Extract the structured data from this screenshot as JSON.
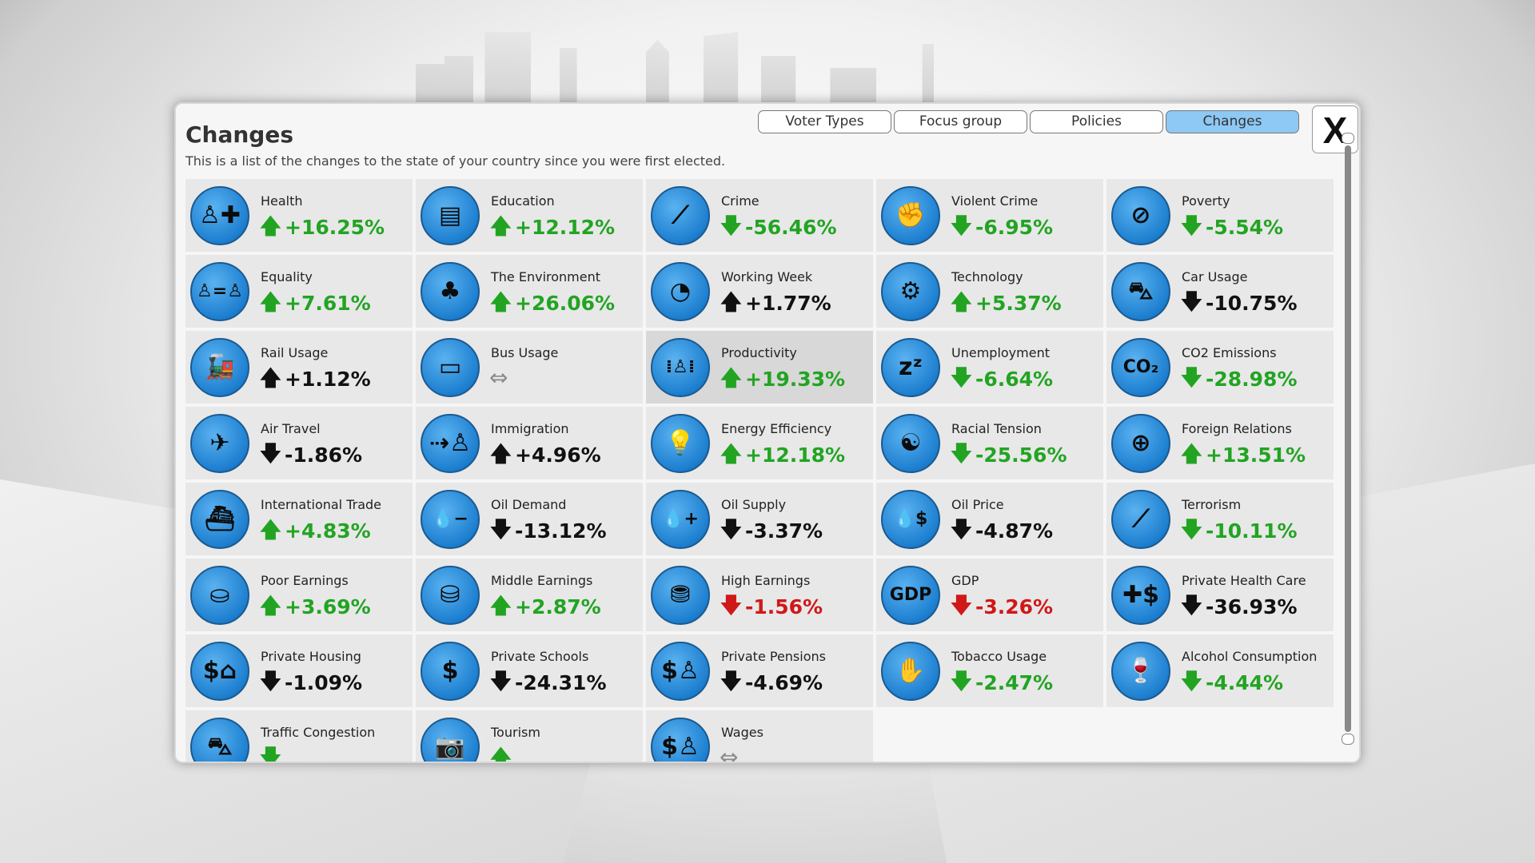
{
  "header": {
    "title": "Changes",
    "subtitle": "This is a list of the changes to the state of your country since you were first elected."
  },
  "tabs": [
    {
      "label": "Voter Types"
    },
    {
      "label": "Focus group"
    },
    {
      "label": "Policies"
    },
    {
      "label": "Changes",
      "active": true
    }
  ],
  "close_label": "X",
  "colors": {
    "green": "#22a422",
    "black": "#111111",
    "red": "#d01818",
    "neutral": "#8a8a8a",
    "icon_blue": "#2b8fe0",
    "active_tab": "#8ec8f4"
  },
  "items": [
    {
      "label": "Health",
      "value": "+16.25%",
      "arrow": "up",
      "color": "green",
      "icon": "person-plus",
      "glyph": "♙✚"
    },
    {
      "label": "Education",
      "value": "+12.12%",
      "arrow": "up",
      "color": "green",
      "icon": "report-card",
      "glyph": "▤"
    },
    {
      "label": "Crime",
      "value": "-56.46%",
      "arrow": "down",
      "color": "green",
      "icon": "crowbar-bag",
      "glyph": "⟋"
    },
    {
      "label": "Violent Crime",
      "value": "-6.95%",
      "arrow": "down",
      "color": "green",
      "icon": "fist",
      "glyph": "✊"
    },
    {
      "label": "Poverty",
      "value": "-5.54%",
      "arrow": "down",
      "color": "green",
      "icon": "no-dollar",
      "glyph": "⊘"
    },
    {
      "label": "Equality",
      "value": "+7.61%",
      "arrow": "up",
      "color": "green",
      "icon": "people-equal",
      "glyph": "♙=♙"
    },
    {
      "label": "The Environment",
      "value": "+26.06%",
      "arrow": "up",
      "color": "green",
      "icon": "trees",
      "glyph": "♣"
    },
    {
      "label": "Working Week",
      "value": "+1.77%",
      "arrow": "up",
      "color": "black",
      "icon": "clock-person",
      "glyph": "◔"
    },
    {
      "label": "Technology",
      "value": "+5.37%",
      "arrow": "up",
      "color": "green",
      "icon": "computer",
      "glyph": "⚙"
    },
    {
      "label": "Car Usage",
      "value": "-10.75%",
      "arrow": "down",
      "color": "black",
      "icon": "car",
      "glyph": "⛍"
    },
    {
      "label": "Rail Usage",
      "value": "+1.12%",
      "arrow": "up",
      "color": "black",
      "icon": "train",
      "glyph": "🚂"
    },
    {
      "label": "Bus Usage",
      "value": "",
      "arrow": "neutral",
      "color": "neutral",
      "icon": "bus",
      "glyph": "▭"
    },
    {
      "label": "Productivity",
      "value": "+19.33%",
      "arrow": "up",
      "color": "green",
      "icon": "productivity",
      "glyph": "⁞♙⁞",
      "highlight": true
    },
    {
      "label": "Unemployment",
      "value": "-6.64%",
      "arrow": "down",
      "color": "green",
      "icon": "sleeping-person",
      "glyph": "zᶻ"
    },
    {
      "label": "CO2 Emissions",
      "value": "-28.98%",
      "arrow": "down",
      "color": "green",
      "icon": "co2",
      "glyph": "CO₂"
    },
    {
      "label": "Air Travel",
      "value": "-1.86%",
      "arrow": "down",
      "color": "black",
      "icon": "airplane",
      "glyph": "✈"
    },
    {
      "label": "Immigration",
      "value": "+4.96%",
      "arrow": "up",
      "color": "black",
      "icon": "person-arrows",
      "glyph": "⇢♙"
    },
    {
      "label": "Energy Efficiency",
      "value": "+12.18%",
      "arrow": "up",
      "color": "green",
      "icon": "lightbulb",
      "glyph": "💡"
    },
    {
      "label": "Racial Tension",
      "value": "-25.56%",
      "arrow": "down",
      "color": "green",
      "icon": "yin-yang",
      "glyph": "☯"
    },
    {
      "label": "Foreign Relations",
      "value": "+13.51%",
      "arrow": "up",
      "color": "green",
      "icon": "globe",
      "glyph": "⊕"
    },
    {
      "label": "International Trade",
      "value": "+4.83%",
      "arrow": "up",
      "color": "green",
      "icon": "ship",
      "glyph": "⛴"
    },
    {
      "label": "Oil Demand",
      "value": "-13.12%",
      "arrow": "down",
      "color": "black",
      "icon": "drop-minus",
      "glyph": "💧−"
    },
    {
      "label": "Oil Supply",
      "value": "-3.37%",
      "arrow": "down",
      "color": "black",
      "icon": "drop-plus",
      "glyph": "💧+"
    },
    {
      "label": "Oil Price",
      "value": "-4.87%",
      "arrow": "down",
      "color": "black",
      "icon": "drop-dollar",
      "glyph": "💧$"
    },
    {
      "label": "Terrorism",
      "value": "-10.11%",
      "arrow": "down",
      "color": "green",
      "icon": "bomb",
      "glyph": "⟋"
    },
    {
      "label": "Poor Earnings",
      "value": "+3.69%",
      "arrow": "up",
      "color": "green",
      "icon": "coins-low",
      "glyph": "⛀"
    },
    {
      "label": "Middle Earnings",
      "value": "+2.87%",
      "arrow": "up",
      "color": "green",
      "icon": "coins-mid",
      "glyph": "⛁"
    },
    {
      "label": "High Earnings",
      "value": "-1.56%",
      "arrow": "down",
      "color": "red",
      "icon": "coins-high",
      "glyph": "⛃"
    },
    {
      "label": "GDP",
      "value": "-3.26%",
      "arrow": "down",
      "color": "red",
      "icon": "gdp",
      "glyph": "GDP"
    },
    {
      "label": "Private Health Care",
      "value": "-36.93%",
      "arrow": "down",
      "color": "black",
      "icon": "health-dollar",
      "glyph": "✚$"
    },
    {
      "label": "Private Housing",
      "value": "-1.09%",
      "arrow": "down",
      "color": "black",
      "icon": "house-dollar",
      "glyph": "$⌂"
    },
    {
      "label": "Private Schools",
      "value": "-24.31%",
      "arrow": "down",
      "color": "black",
      "icon": "school-dollar",
      "glyph": "$"
    },
    {
      "label": "Private Pensions",
      "value": "-4.69%",
      "arrow": "down",
      "color": "black",
      "icon": "pension-dollar",
      "glyph": "$♙"
    },
    {
      "label": "Tobacco Usage",
      "value": "-2.47%",
      "arrow": "down",
      "color": "green",
      "icon": "cigarette-hand",
      "glyph": "✋"
    },
    {
      "label": "Alcohol Consumption",
      "value": "-4.44%",
      "arrow": "down",
      "color": "green",
      "icon": "bottle-glass",
      "glyph": "🍷"
    },
    {
      "label": "Traffic Congestion",
      "value": "",
      "arrow": "down",
      "color": "green",
      "icon": "cars",
      "glyph": "⛍"
    },
    {
      "label": "Tourism",
      "value": "",
      "arrow": "up",
      "color": "green",
      "icon": "camera",
      "glyph": "📷"
    },
    {
      "label": "Wages",
      "value": "",
      "arrow": "neutral",
      "color": "neutral",
      "icon": "money-person",
      "glyph": "$♙"
    }
  ]
}
